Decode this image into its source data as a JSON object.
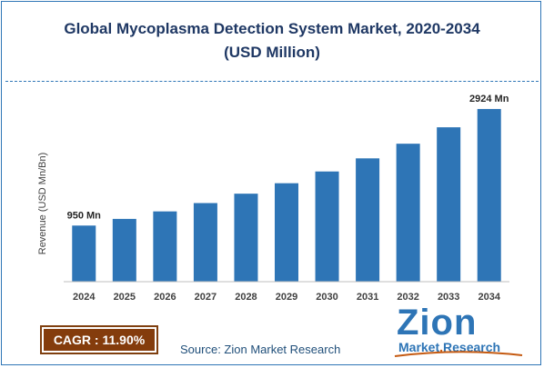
{
  "title_line1": "Global Mycoplasma Detection System Market, 2020-2034",
  "title_line2": "(USD Million)",
  "ylabel": "Revenue (USD Mn/Bn)",
  "cagr_label": "CAGR : 11.90%",
  "source_text": "Source: Zion Market Research",
  "logo": {
    "word": "Zion",
    "sub_market": "Market",
    "sub_dot": ".",
    "sub_research": "Research"
  },
  "colors": {
    "bar": "#2e75b6",
    "title": "#1f3864",
    "cagr_bg": "#843c0c",
    "logo_blue": "#2e75b6",
    "logo_orange": "#c55a11"
  },
  "chart_data": {
    "type": "bar",
    "categories": [
      "2024",
      "2025",
      "2026",
      "2027",
      "2028",
      "2029",
      "2030",
      "2031",
      "2032",
      "2033",
      "2034"
    ],
    "values": [
      950,
      1063,
      1190,
      1331,
      1490,
      1667,
      1866,
      2088,
      2336,
      2614,
      2924
    ],
    "data_labels": {
      "0": "950 Mn",
      "10": "2924 Mn"
    },
    "ylabel": "Revenue (USD Mn/Bn)",
    "ylim": [
      0,
      3200
    ],
    "grid": false,
    "legend": "none"
  }
}
